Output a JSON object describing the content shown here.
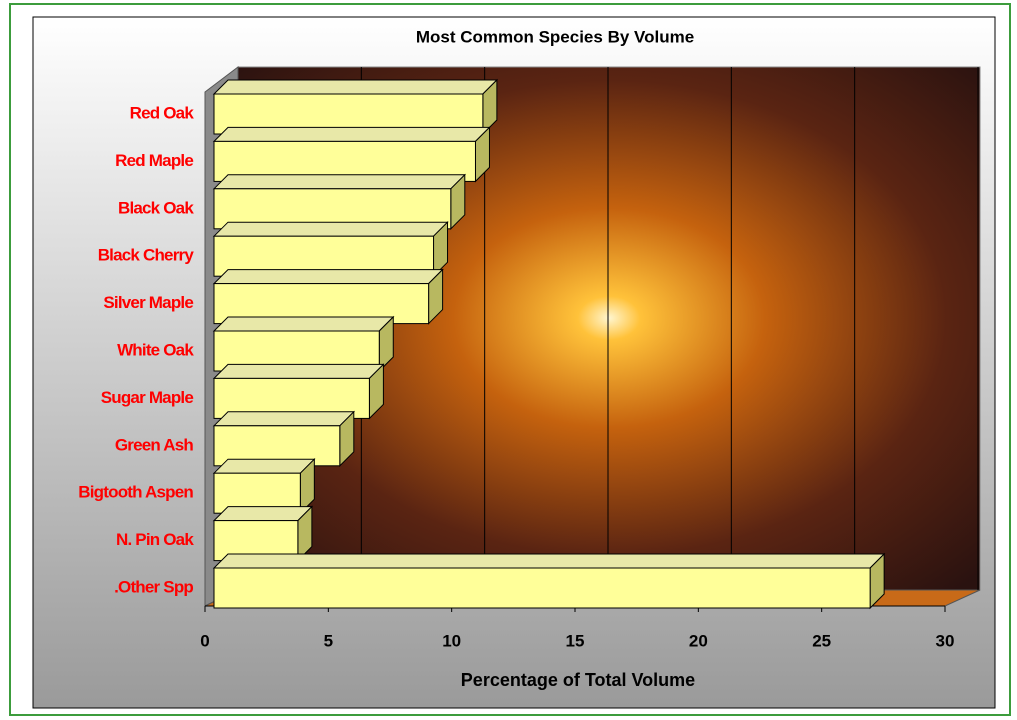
{
  "chart_data": {
    "type": "bar",
    "orientation": "horizontal",
    "title": "Most Common Species By Volume",
    "x_label": "Percentage of Total Volume",
    "categories": [
      "Red Oak",
      "Red Maple",
      "Black Oak",
      "Black Cherry",
      "Silver Maple",
      "White Oak",
      "Sugar Maple",
      "Green Ash",
      "Bigtooth Aspen",
      "N. Pin Oak",
      ".Other Spp"
    ],
    "values": [
      10.9,
      10.6,
      9.6,
      8.9,
      8.7,
      6.7,
      6.3,
      5.1,
      3.5,
      3.4,
      26.6
    ],
    "color": "#ffff99",
    "label_color": "#ff0000",
    "xlim": [
      0,
      30
    ],
    "xticks": [
      0,
      5,
      10,
      15,
      20,
      25,
      30
    ],
    "grid": true
  }
}
